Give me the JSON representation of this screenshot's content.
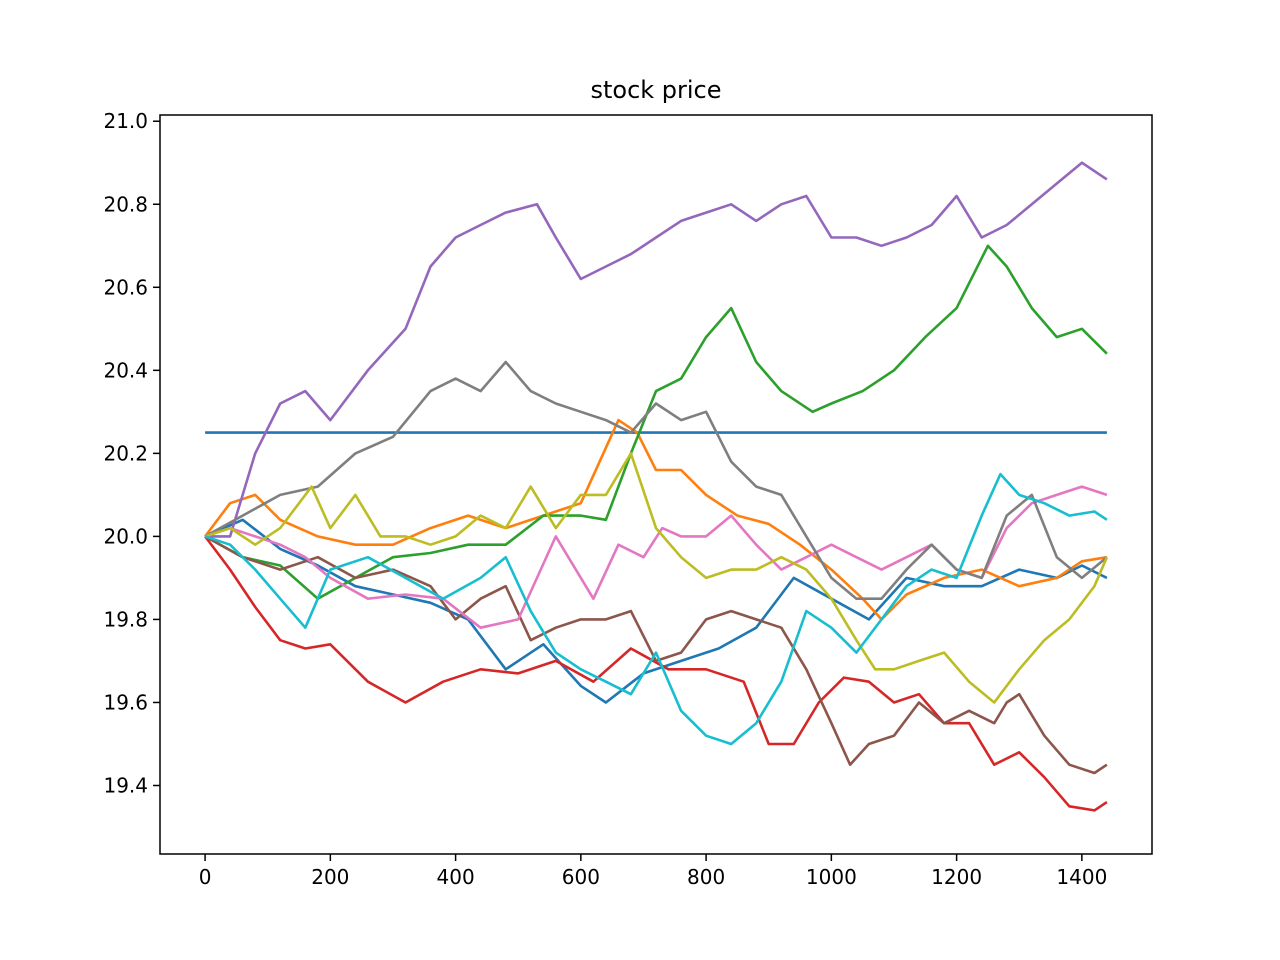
{
  "chart_data": {
    "type": "line",
    "title": "stock price",
    "xlabel": "",
    "ylabel": "",
    "xlim": [
      -72,
      1512
    ],
    "ylim": [
      19.235,
      21.015
    ],
    "x_ticks": [
      0,
      200,
      400,
      600,
      800,
      1000,
      1200,
      1400
    ],
    "x_tick_labels": [
      "0",
      "200",
      "400",
      "600",
      "800",
      "1000",
      "1200",
      "1400"
    ],
    "y_ticks": [
      19.4,
      19.6,
      19.8,
      20.0,
      20.2,
      20.4,
      20.6,
      20.8,
      21.0
    ],
    "y_tick_labels": [
      "19.4",
      "19.6",
      "19.8",
      "20.0",
      "20.2",
      "20.4",
      "20.6",
      "20.8",
      "21.0"
    ],
    "grid": false,
    "legend": "none",
    "series": [
      {
        "color": "#1f77b4",
        "x": [
          0,
          1440
        ],
        "y": [
          20.25,
          20.25
        ]
      },
      {
        "color": "#1f77b4",
        "x": [
          0,
          60,
          120,
          180,
          240,
          300,
          360,
          420,
          480,
          540,
          600,
          640,
          700,
          760,
          820,
          880,
          940,
          1000,
          1060,
          1120,
          1180,
          1240,
          1300,
          1360,
          1400,
          1440
        ],
        "y": [
          20.0,
          20.04,
          19.97,
          19.93,
          19.88,
          19.86,
          19.84,
          19.8,
          19.68,
          19.74,
          19.64,
          19.6,
          19.67,
          19.7,
          19.73,
          19.78,
          19.9,
          19.85,
          19.8,
          19.9,
          19.88,
          19.88,
          19.92,
          19.9,
          19.93,
          19.9
        ]
      },
      {
        "color": "#ff7f0e",
        "x": [
          0,
          40,
          80,
          120,
          180,
          240,
          300,
          360,
          420,
          480,
          540,
          600,
          630,
          660,
          690,
          720,
          760,
          800,
          850,
          900,
          950,
          1000,
          1050,
          1080,
          1120,
          1180,
          1240,
          1300,
          1360,
          1400,
          1440
        ],
        "y": [
          20.0,
          20.08,
          20.1,
          20.04,
          20.0,
          19.98,
          19.98,
          20.02,
          20.05,
          20.02,
          20.05,
          20.08,
          20.18,
          20.28,
          20.25,
          20.16,
          20.16,
          20.1,
          20.05,
          20.03,
          19.98,
          19.92,
          19.85,
          19.8,
          19.86,
          19.9,
          19.92,
          19.88,
          19.9,
          19.94,
          19.95
        ]
      },
      {
        "color": "#2ca02c",
        "x": [
          0,
          60,
          120,
          180,
          240,
          300,
          360,
          420,
          480,
          540,
          600,
          640,
          680,
          720,
          760,
          800,
          840,
          880,
          920,
          970,
          1000,
          1050,
          1100,
          1150,
          1200,
          1250,
          1280,
          1320,
          1360,
          1400,
          1440
        ],
        "y": [
          20.0,
          19.95,
          19.93,
          19.85,
          19.9,
          19.95,
          19.96,
          19.98,
          19.98,
          20.05,
          20.05,
          20.04,
          20.2,
          20.35,
          20.38,
          20.48,
          20.55,
          20.42,
          20.35,
          20.3,
          20.32,
          20.35,
          20.4,
          20.48,
          20.55,
          20.7,
          20.65,
          20.55,
          20.48,
          20.5,
          20.44
        ]
      },
      {
        "color": "#d62728",
        "x": [
          0,
          40,
          80,
          120,
          160,
          200,
          260,
          320,
          380,
          440,
          500,
          560,
          620,
          680,
          740,
          800,
          860,
          900,
          940,
          980,
          1020,
          1060,
          1100,
          1140,
          1180,
          1220,
          1260,
          1300,
          1340,
          1380,
          1420,
          1440
        ],
        "y": [
          20.0,
          19.92,
          19.83,
          19.75,
          19.73,
          19.74,
          19.65,
          19.6,
          19.65,
          19.68,
          19.67,
          19.7,
          19.65,
          19.73,
          19.68,
          19.68,
          19.65,
          19.5,
          19.5,
          19.6,
          19.66,
          19.65,
          19.6,
          19.62,
          19.55,
          19.55,
          19.45,
          19.48,
          19.42,
          19.35,
          19.34,
          19.36
        ]
      },
      {
        "color": "#9467bd",
        "x": [
          0,
          40,
          80,
          120,
          160,
          200,
          260,
          320,
          360,
          400,
          440,
          480,
          530,
          560,
          600,
          640,
          680,
          720,
          760,
          800,
          840,
          880,
          920,
          960,
          1000,
          1040,
          1080,
          1120,
          1160,
          1200,
          1240,
          1280,
          1320,
          1360,
          1400,
          1440
        ],
        "y": [
          20.0,
          20.0,
          20.2,
          20.32,
          20.35,
          20.28,
          20.4,
          20.5,
          20.65,
          20.72,
          20.75,
          20.78,
          20.8,
          20.72,
          20.62,
          20.65,
          20.68,
          20.72,
          20.76,
          20.78,
          20.8,
          20.76,
          20.8,
          20.82,
          20.72,
          20.72,
          20.7,
          20.72,
          20.75,
          20.82,
          20.72,
          20.75,
          20.8,
          20.85,
          20.9,
          20.86
        ]
      },
      {
        "color": "#8c564b",
        "x": [
          0,
          60,
          120,
          180,
          240,
          300,
          360,
          400,
          440,
          480,
          520,
          560,
          600,
          640,
          680,
          720,
          760,
          800,
          840,
          880,
          920,
          960,
          1000,
          1030,
          1060,
          1100,
          1140,
          1180,
          1220,
          1260,
          1280,
          1300,
          1340,
          1380,
          1420,
          1440
        ],
        "y": [
          20.0,
          19.95,
          19.92,
          19.95,
          19.9,
          19.92,
          19.88,
          19.8,
          19.85,
          19.88,
          19.75,
          19.78,
          19.8,
          19.8,
          19.82,
          19.7,
          19.72,
          19.8,
          19.82,
          19.8,
          19.78,
          19.68,
          19.55,
          19.45,
          19.5,
          19.52,
          19.6,
          19.55,
          19.58,
          19.55,
          19.6,
          19.62,
          19.52,
          19.45,
          19.43,
          19.45
        ]
      },
      {
        "color": "#e377c2",
        "x": [
          0,
          40,
          80,
          120,
          160,
          200,
          260,
          320,
          380,
          440,
          500,
          560,
          620,
          660,
          700,
          730,
          760,
          800,
          840,
          880,
          920,
          960,
          1000,
          1040,
          1080,
          1120,
          1160,
          1200,
          1240,
          1280,
          1320,
          1360,
          1400,
          1440
        ],
        "y": [
          20.0,
          20.02,
          20.0,
          19.98,
          19.95,
          19.9,
          19.85,
          19.86,
          19.85,
          19.78,
          19.8,
          20.0,
          19.85,
          19.98,
          19.95,
          20.02,
          20.0,
          20.0,
          20.05,
          19.98,
          19.92,
          19.95,
          19.98,
          19.95,
          19.92,
          19.95,
          19.98,
          19.92,
          19.9,
          20.02,
          20.08,
          20.1,
          20.12,
          20.1
        ]
      },
      {
        "color": "#7f7f7f",
        "x": [
          0,
          60,
          120,
          180,
          240,
          300,
          360,
          400,
          440,
          480,
          520,
          560,
          600,
          640,
          680,
          720,
          760,
          800,
          840,
          880,
          920,
          960,
          1000,
          1040,
          1080,
          1120,
          1160,
          1200,
          1240,
          1280,
          1320,
          1360,
          1400,
          1440
        ],
        "y": [
          20.0,
          20.05,
          20.1,
          20.12,
          20.2,
          20.24,
          20.35,
          20.38,
          20.35,
          20.42,
          20.35,
          20.32,
          20.3,
          20.28,
          20.25,
          20.32,
          20.28,
          20.3,
          20.18,
          20.12,
          20.1,
          20.0,
          19.9,
          19.85,
          19.85,
          19.92,
          19.98,
          19.92,
          19.9,
          20.05,
          20.1,
          19.95,
          19.9,
          19.95
        ]
      },
      {
        "color": "#bcbd22",
        "x": [
          0,
          40,
          80,
          120,
          170,
          200,
          240,
          280,
          320,
          360,
          400,
          440,
          480,
          520,
          560,
          600,
          640,
          680,
          720,
          760,
          800,
          840,
          880,
          920,
          960,
          1000,
          1040,
          1070,
          1100,
          1140,
          1180,
          1220,
          1260,
          1300,
          1340,
          1380,
          1420,
          1440
        ],
        "y": [
          20.0,
          20.02,
          19.98,
          20.02,
          20.12,
          20.02,
          20.1,
          20.0,
          20.0,
          19.98,
          20.0,
          20.05,
          20.02,
          20.12,
          20.02,
          20.1,
          20.1,
          20.2,
          20.02,
          19.95,
          19.9,
          19.92,
          19.92,
          19.95,
          19.92,
          19.85,
          19.75,
          19.68,
          19.68,
          19.7,
          19.72,
          19.65,
          19.6,
          19.68,
          19.75,
          19.8,
          19.88,
          19.95
        ]
      },
      {
        "color": "#17becf",
        "x": [
          0,
          40,
          80,
          120,
          160,
          200,
          260,
          320,
          380,
          440,
          480,
          520,
          560,
          600,
          640,
          680,
          720,
          760,
          800,
          840,
          880,
          920,
          960,
          1000,
          1040,
          1080,
          1120,
          1160,
          1200,
          1240,
          1270,
          1300,
          1340,
          1380,
          1420,
          1440
        ],
        "y": [
          20.0,
          19.98,
          19.92,
          19.85,
          19.78,
          19.92,
          19.95,
          19.9,
          19.85,
          19.9,
          19.95,
          19.82,
          19.72,
          19.68,
          19.65,
          19.62,
          19.72,
          19.58,
          19.52,
          19.5,
          19.55,
          19.65,
          19.82,
          19.78,
          19.72,
          19.8,
          19.88,
          19.92,
          19.9,
          20.05,
          20.15,
          20.1,
          20.08,
          20.05,
          20.06,
          20.04
        ]
      }
    ]
  }
}
